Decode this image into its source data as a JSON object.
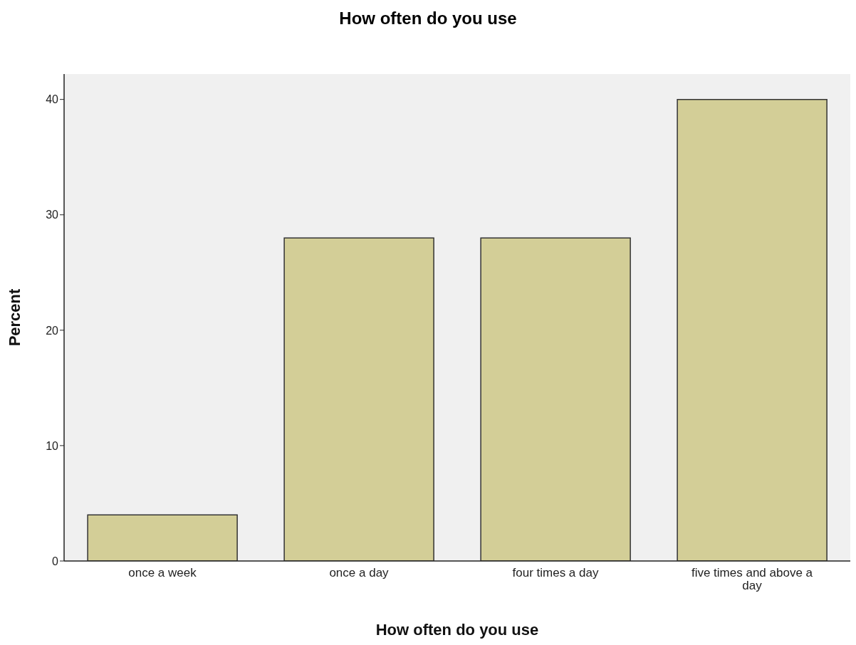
{
  "chart_data": {
    "type": "bar",
    "title": "How often do you use",
    "xlabel": "How often do you use",
    "ylabel": "Percent",
    "categories": [
      "once a week",
      "once a day",
      "four times a day",
      "five times and above a day"
    ],
    "values": [
      4,
      28,
      28,
      40
    ],
    "color": "#d3ce97",
    "ylim": [
      0,
      42.2
    ],
    "yticks": [
      0,
      10,
      20,
      30,
      40
    ],
    "grid": false,
    "legend": false
  }
}
